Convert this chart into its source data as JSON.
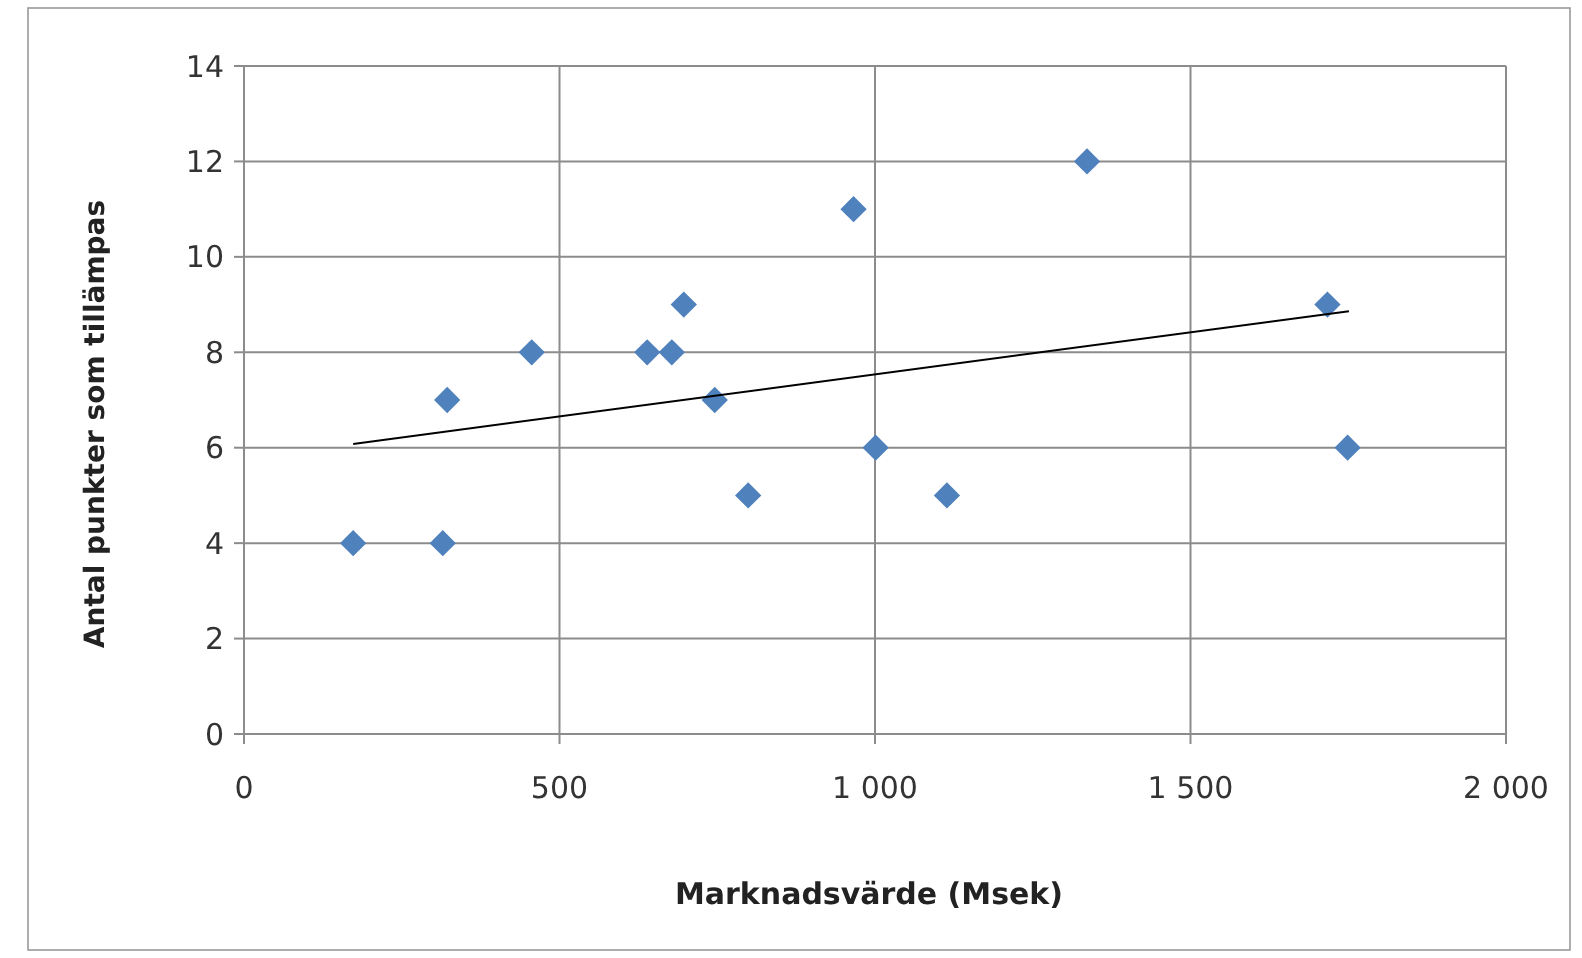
{
  "chart_data": {
    "type": "scatter",
    "xlabel": "Marknadsvärde (Msek)",
    "ylabel": "Antal punkter som tillämpas",
    "xlim": [
      0,
      2000
    ],
    "xticks": [
      0,
      500,
      {
        "value": 1000,
        "label": "1 000"
      },
      {
        "value": 1500,
        "label": "1 500"
      },
      {
        "value": 2000,
        "label": "2 000"
      }
    ],
    "ylim": [
      0,
      14
    ],
    "yticks": [
      0,
      2,
      4,
      6,
      8,
      10,
      12,
      14
    ],
    "grid": true,
    "marker": "diamond",
    "series": [
      {
        "color": "#4f81bd",
        "x": [
          173,
          315,
          322,
          456,
          639,
          678,
          697,
          746,
          799,
          966,
          1001,
          1114,
          1336,
          1717,
          1749
        ],
        "values": [
          4,
          4,
          7,
          8,
          8,
          8,
          9,
          7,
          5,
          11,
          6,
          5,
          12,
          9,
          6
        ]
      },
      {
        "type": "line",
        "color": "#000000",
        "marker": "none",
        "x": [
          173,
          1751
        ],
        "values": [
          6.08,
          8.86
        ]
      }
    ]
  }
}
